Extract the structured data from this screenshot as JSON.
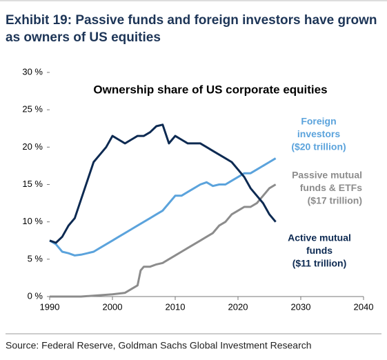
{
  "chart_data": {
    "type": "line",
    "title": [
      "Exhibit 19: Passive funds and foreign investors have grown",
      "as owners of US equities"
    ],
    "subtitle": "Ownership share of US corporate equities",
    "source": "Source: Federal Reserve, Goldman Sachs Global Investment Research",
    "xlim": [
      1990,
      2040
    ],
    "xticks": [
      1990,
      2000,
      2010,
      2020,
      2030,
      2040
    ],
    "ylim": [
      0,
      30
    ],
    "yticks": [
      {
        "value": 0,
        "label": "0 %"
      },
      {
        "value": 5,
        "label": "5 %"
      },
      {
        "value": 10,
        "label": "10 %"
      },
      {
        "value": 15,
        "label": "15 %"
      },
      {
        "value": 20,
        "label": "20 %"
      },
      {
        "value": 25,
        "label": "25 %"
      },
      {
        "value": 30,
        "label": "30 %"
      }
    ],
    "grid": false,
    "series": [
      {
        "label": [
          "Foreign",
          "investors",
          "($20 trillion)"
        ],
        "color": "#5ba3dc",
        "x": [
          1990,
          1991,
          1992,
          1993,
          1994,
          1995,
          1996,
          1997,
          1998,
          1999,
          2000,
          2001,
          2002,
          2003,
          2004,
          2005,
          2006,
          2007,
          2008,
          2009,
          2010,
          2011,
          2012,
          2013,
          2014,
          2015,
          2016,
          2017,
          2018,
          2019,
          2020,
          2021,
          2022,
          2023,
          2024,
          2025,
          2026
        ],
        "values": [
          7.5,
          7,
          6,
          5.8,
          5.5,
          5.6,
          5.8,
          6,
          6.5,
          7,
          7.5,
          8,
          8.5,
          9,
          9.5,
          10,
          10.5,
          11,
          11.5,
          12.5,
          13.5,
          13.5,
          14,
          14.5,
          15,
          15.3,
          14.8,
          15,
          15,
          15.5,
          16,
          16.5,
          16.5,
          17,
          17.5,
          18,
          18.5
        ]
      },
      {
        "label": [
          "Passive mutual",
          "funds & ETFs",
          "($17 trillion)"
        ],
        "color": "#8c8c8c",
        "x": [
          1990,
          1995,
          2000,
          2002,
          2003,
          2004,
          2004.5,
          2005,
          2006,
          2007,
          2008,
          2009,
          2010,
          2011,
          2012,
          2013,
          2014,
          2015,
          2016,
          2017,
          2018,
          2019,
          2020,
          2021,
          2022,
          2023,
          2024,
          2025,
          2026
        ],
        "values": [
          0,
          0,
          0.3,
          0.5,
          1,
          1.5,
          3.5,
          4,
          4,
          4.3,
          4.5,
          5,
          5.5,
          6,
          6.5,
          7,
          7.5,
          8,
          8.5,
          9.5,
          10,
          11,
          11.5,
          12,
          12,
          12.5,
          13.5,
          14.5,
          15
        ]
      },
      {
        "label": [
          "Active mutual",
          "funds",
          "($11 trillion)"
        ],
        "color": "#0d2a52",
        "x": [
          1990,
          1991,
          1992,
          1993,
          1994,
          1995,
          1996,
          1997,
          1998,
          1999,
          2000,
          2001,
          2002,
          2003,
          2004,
          2005,
          2006,
          2007,
          2008,
          2009,
          2010,
          2011,
          2012,
          2013,
          2014,
          2015,
          2016,
          2017,
          2018,
          2019,
          2020,
          2021,
          2022,
          2023,
          2024,
          2025,
          2026
        ],
        "values": [
          7.5,
          7.2,
          8,
          9.5,
          10.5,
          13,
          15.5,
          18,
          19,
          20,
          21.5,
          21,
          20.5,
          21,
          21.5,
          21.5,
          22,
          22.8,
          23,
          20.5,
          21.5,
          21,
          20.5,
          20.5,
          20.5,
          20,
          19.5,
          19,
          18.5,
          18,
          17,
          16,
          14.5,
          13.5,
          12.5,
          11,
          10
        ]
      }
    ]
  }
}
